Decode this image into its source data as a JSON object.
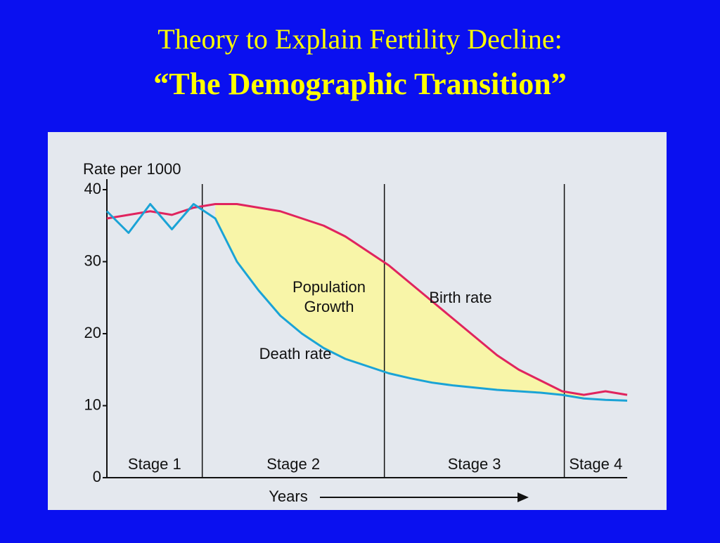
{
  "chart_data": {
    "type": "line",
    "title": "Theory to Explain Fertility Decline:",
    "subtitle": "“The Demographic Transition”",
    "y_label": "Rate per 1000",
    "x_label": "Years",
    "categories": [
      null,
      null,
      null,
      null,
      null,
      null,
      null,
      null,
      null,
      null,
      null,
      null,
      null,
      null,
      null,
      null,
      null,
      null,
      null,
      null,
      null,
      null,
      null,
      null,
      null
    ],
    "series": [
      {
        "name": "Birth rate",
        "color": "#e0245e",
        "values": [
          36,
          36.5,
          37,
          36.5,
          37.5,
          38,
          38,
          37.5,
          37,
          36,
          35,
          33.5,
          31.5,
          29.5,
          27,
          24.5,
          22,
          19.5,
          17,
          15,
          13.5,
          12,
          11.5,
          12,
          11.5
        ]
      },
      {
        "name": "Death rate",
        "color": "#1aa3d6",
        "values": [
          37,
          34,
          38,
          34.5,
          38,
          36,
          30,
          26,
          22.5,
          20,
          18,
          16.5,
          15.5,
          14.5,
          13.8,
          13.2,
          12.8,
          12.5,
          12.2,
          12,
          11.8,
          11.5,
          11,
          10.8,
          10.7
        ]
      }
    ],
    "stages": [
      "Stage 1",
      "Stage 2",
      "Stage 3",
      "Stage 4"
    ],
    "annotations": [
      "Population",
      "Growth"
    ],
    "ylim": [
      0,
      40
    ],
    "yticks": [
      0,
      10,
      20,
      30,
      40
    ],
    "grid": false
  }
}
